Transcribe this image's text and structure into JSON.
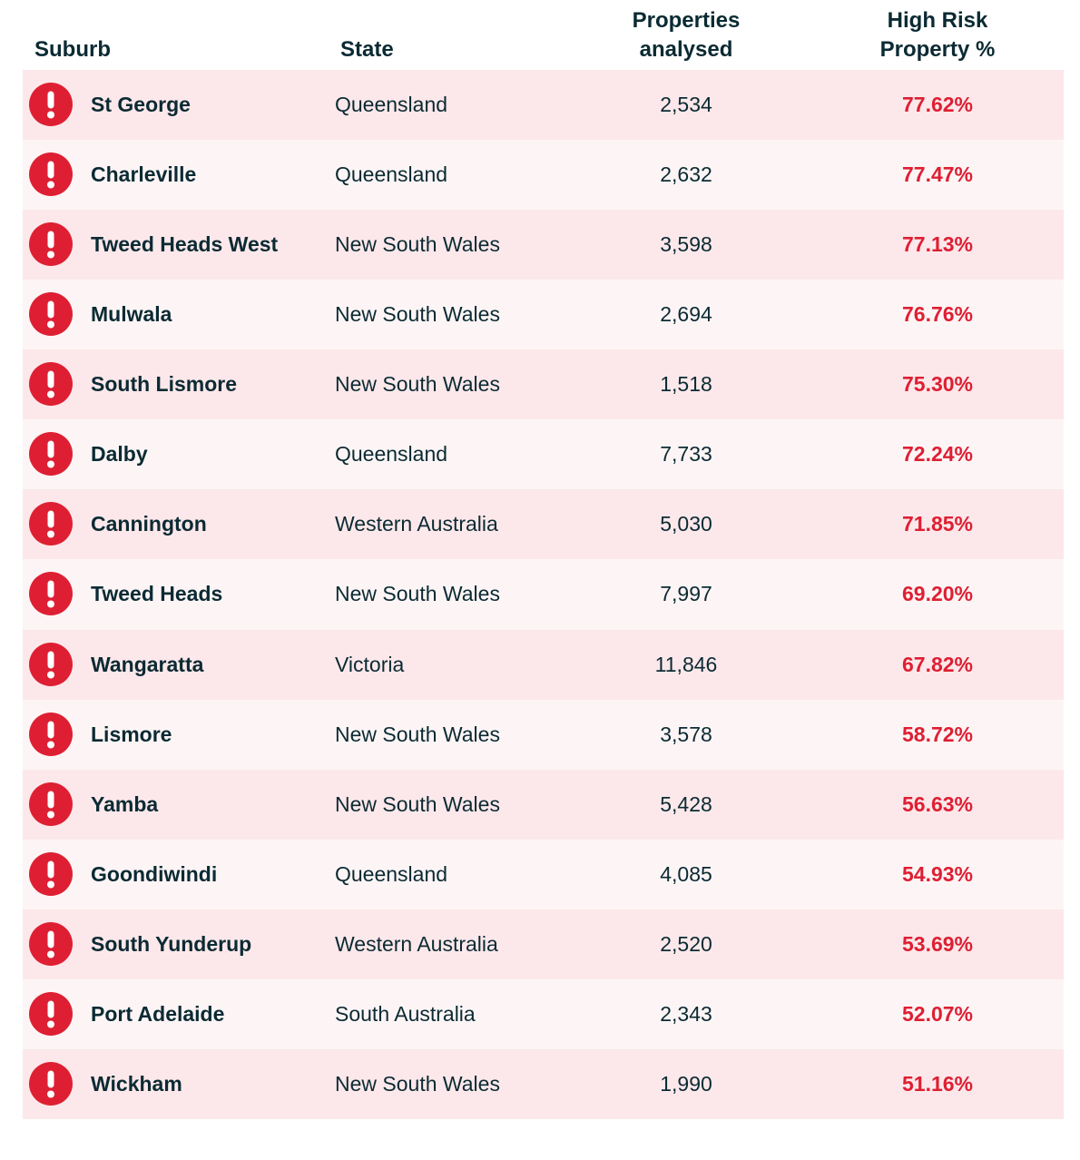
{
  "colors": {
    "alert": "#de1f33",
    "text": "#0b2a33",
    "row_odd": "#fce8ea",
    "row_even": "#fdf5f5"
  },
  "icons": {
    "row_icon": "alert-exclamation-icon"
  },
  "chart_data": {
    "type": "table",
    "columns": [
      "Suburb",
      "State",
      "Properties analysed",
      "High Risk Property %"
    ],
    "header": {
      "suburb": "Suburb",
      "state": "State",
      "props_line1": "Properties",
      "props_line2": "analysed",
      "risk_line1": "High Risk",
      "risk_line2": "Property %"
    },
    "rows": [
      {
        "suburb": "St George",
        "state": "Queensland",
        "properties": "2,534",
        "risk": "77.62%"
      },
      {
        "suburb": "Charleville",
        "state": "Queensland",
        "properties": "2,632",
        "risk": "77.47%"
      },
      {
        "suburb": "Tweed Heads West",
        "state": "New South Wales",
        "properties": "3,598",
        "risk": "77.13%"
      },
      {
        "suburb": "Mulwala",
        "state": "New South Wales",
        "properties": "2,694",
        "risk": "76.76%"
      },
      {
        "suburb": "South Lismore",
        "state": "New South Wales",
        "properties": "1,518",
        "risk": "75.30%"
      },
      {
        "suburb": "Dalby",
        "state": "Queensland",
        "properties": "7,733",
        "risk": "72.24%"
      },
      {
        "suburb": "Cannington",
        "state": "Western Australia",
        "properties": "5,030",
        "risk": "71.85%"
      },
      {
        "suburb": "Tweed Heads",
        "state": "New South Wales",
        "properties": "7,997",
        "risk": "69.20%"
      },
      {
        "suburb": "Wangaratta",
        "state": "Victoria",
        "properties": "11,846",
        "risk": "67.82%"
      },
      {
        "suburb": "Lismore",
        "state": "New South Wales",
        "properties": "3,578",
        "risk": "58.72%"
      },
      {
        "suburb": "Yamba",
        "state": "New South Wales",
        "properties": "5,428",
        "risk": "56.63%"
      },
      {
        "suburb": "Goondiwindi",
        "state": "Queensland",
        "properties": "4,085",
        "risk": "54.93%"
      },
      {
        "suburb": "South Yunderup",
        "state": "Western Australia",
        "properties": "2,520",
        "risk": "53.69%"
      },
      {
        "suburb": "Port Adelaide",
        "state": "South Australia",
        "properties": "2,343",
        "risk": "52.07%"
      },
      {
        "suburb": "Wickham",
        "state": "New South Wales",
        "properties": "1,990",
        "risk": "51.16%"
      }
    ]
  }
}
